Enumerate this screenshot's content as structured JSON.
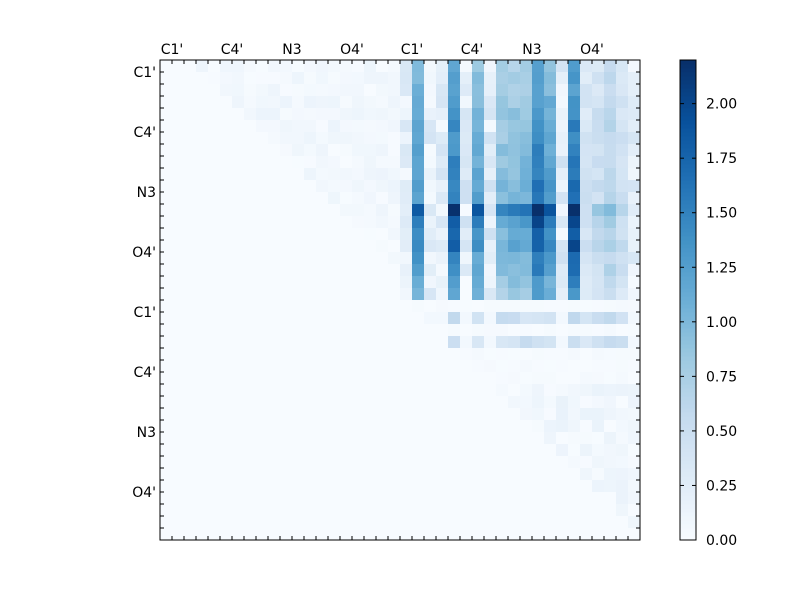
{
  "chart_data": {
    "type": "heatmap",
    "title": "",
    "xlabel": "",
    "ylabel": "",
    "tick_labels": [
      "C1'",
      "C4'",
      "N3",
      "O4'",
      "C1'",
      "C4'",
      "N3",
      "O4'"
    ],
    "label_step": 5,
    "grid_size": 40,
    "vmin": 0.0,
    "vmax": 2.2,
    "colormap": "Blues",
    "colorbar": {
      "ticks": [
        0.0,
        0.25,
        0.5,
        0.75,
        1.0,
        1.25,
        1.5,
        1.75,
        2.0
      ],
      "tick_labels": [
        "0.00",
        "0.25",
        "0.50",
        "0.75",
        "1.00",
        "1.25",
        "1.50",
        "1.75",
        "2.00"
      ],
      "placement": "right"
    },
    "colors": {
      "low": "#f7fbff",
      "high": "#08306b",
      "frame": "#000000"
    }
  }
}
